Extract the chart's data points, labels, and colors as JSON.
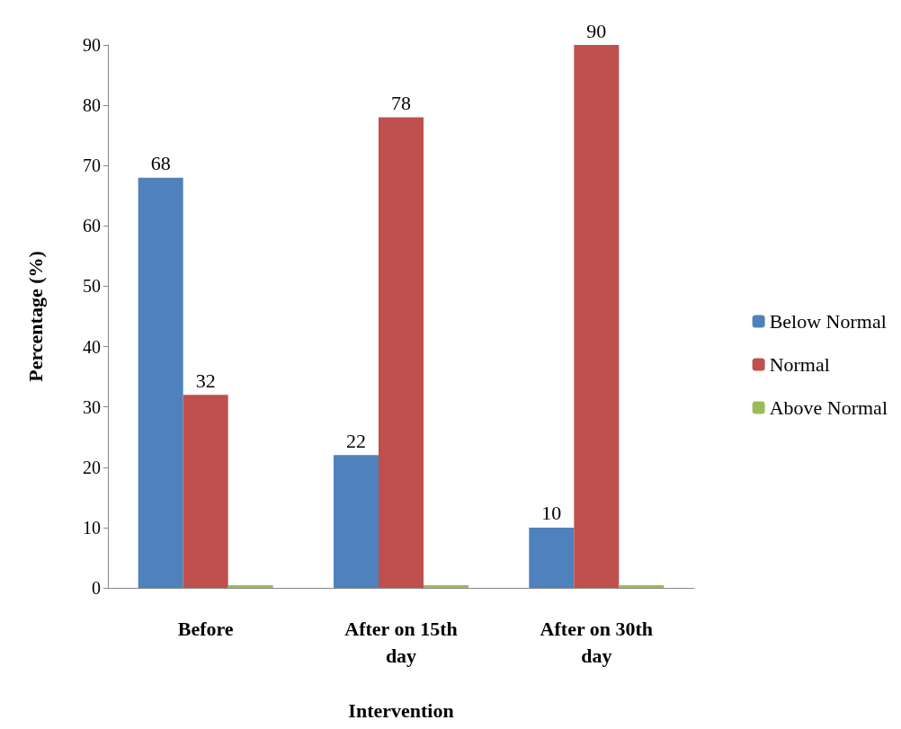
{
  "chart_data": {
    "type": "bar",
    "xlabel": "Intervention",
    "ylabel": "Percentage (%)",
    "categories": [
      "Before",
      "After on 15th\nday",
      "After on 30th\nday"
    ],
    "series": [
      {
        "name": "Below Normal",
        "color": "#4f81bd",
        "values": [
          68,
          22,
          10
        ],
        "value_labels": [
          "68",
          "22",
          "10"
        ]
      },
      {
        "name": "Normal",
        "color": "#c0504d",
        "values": [
          32,
          78,
          90
        ],
        "value_labels": [
          "32",
          "78",
          "90"
        ]
      },
      {
        "name": "Above Normal",
        "color": "#9bbb59",
        "values": [
          0,
          0,
          0
        ],
        "value_labels": [
          null,
          null,
          null
        ]
      }
    ],
    "ylim": [
      0,
      90
    ],
    "yticks": [
      0,
      10,
      20,
      30,
      40,
      50,
      60,
      70,
      80,
      90
    ],
    "grid": false,
    "legend": "right"
  }
}
